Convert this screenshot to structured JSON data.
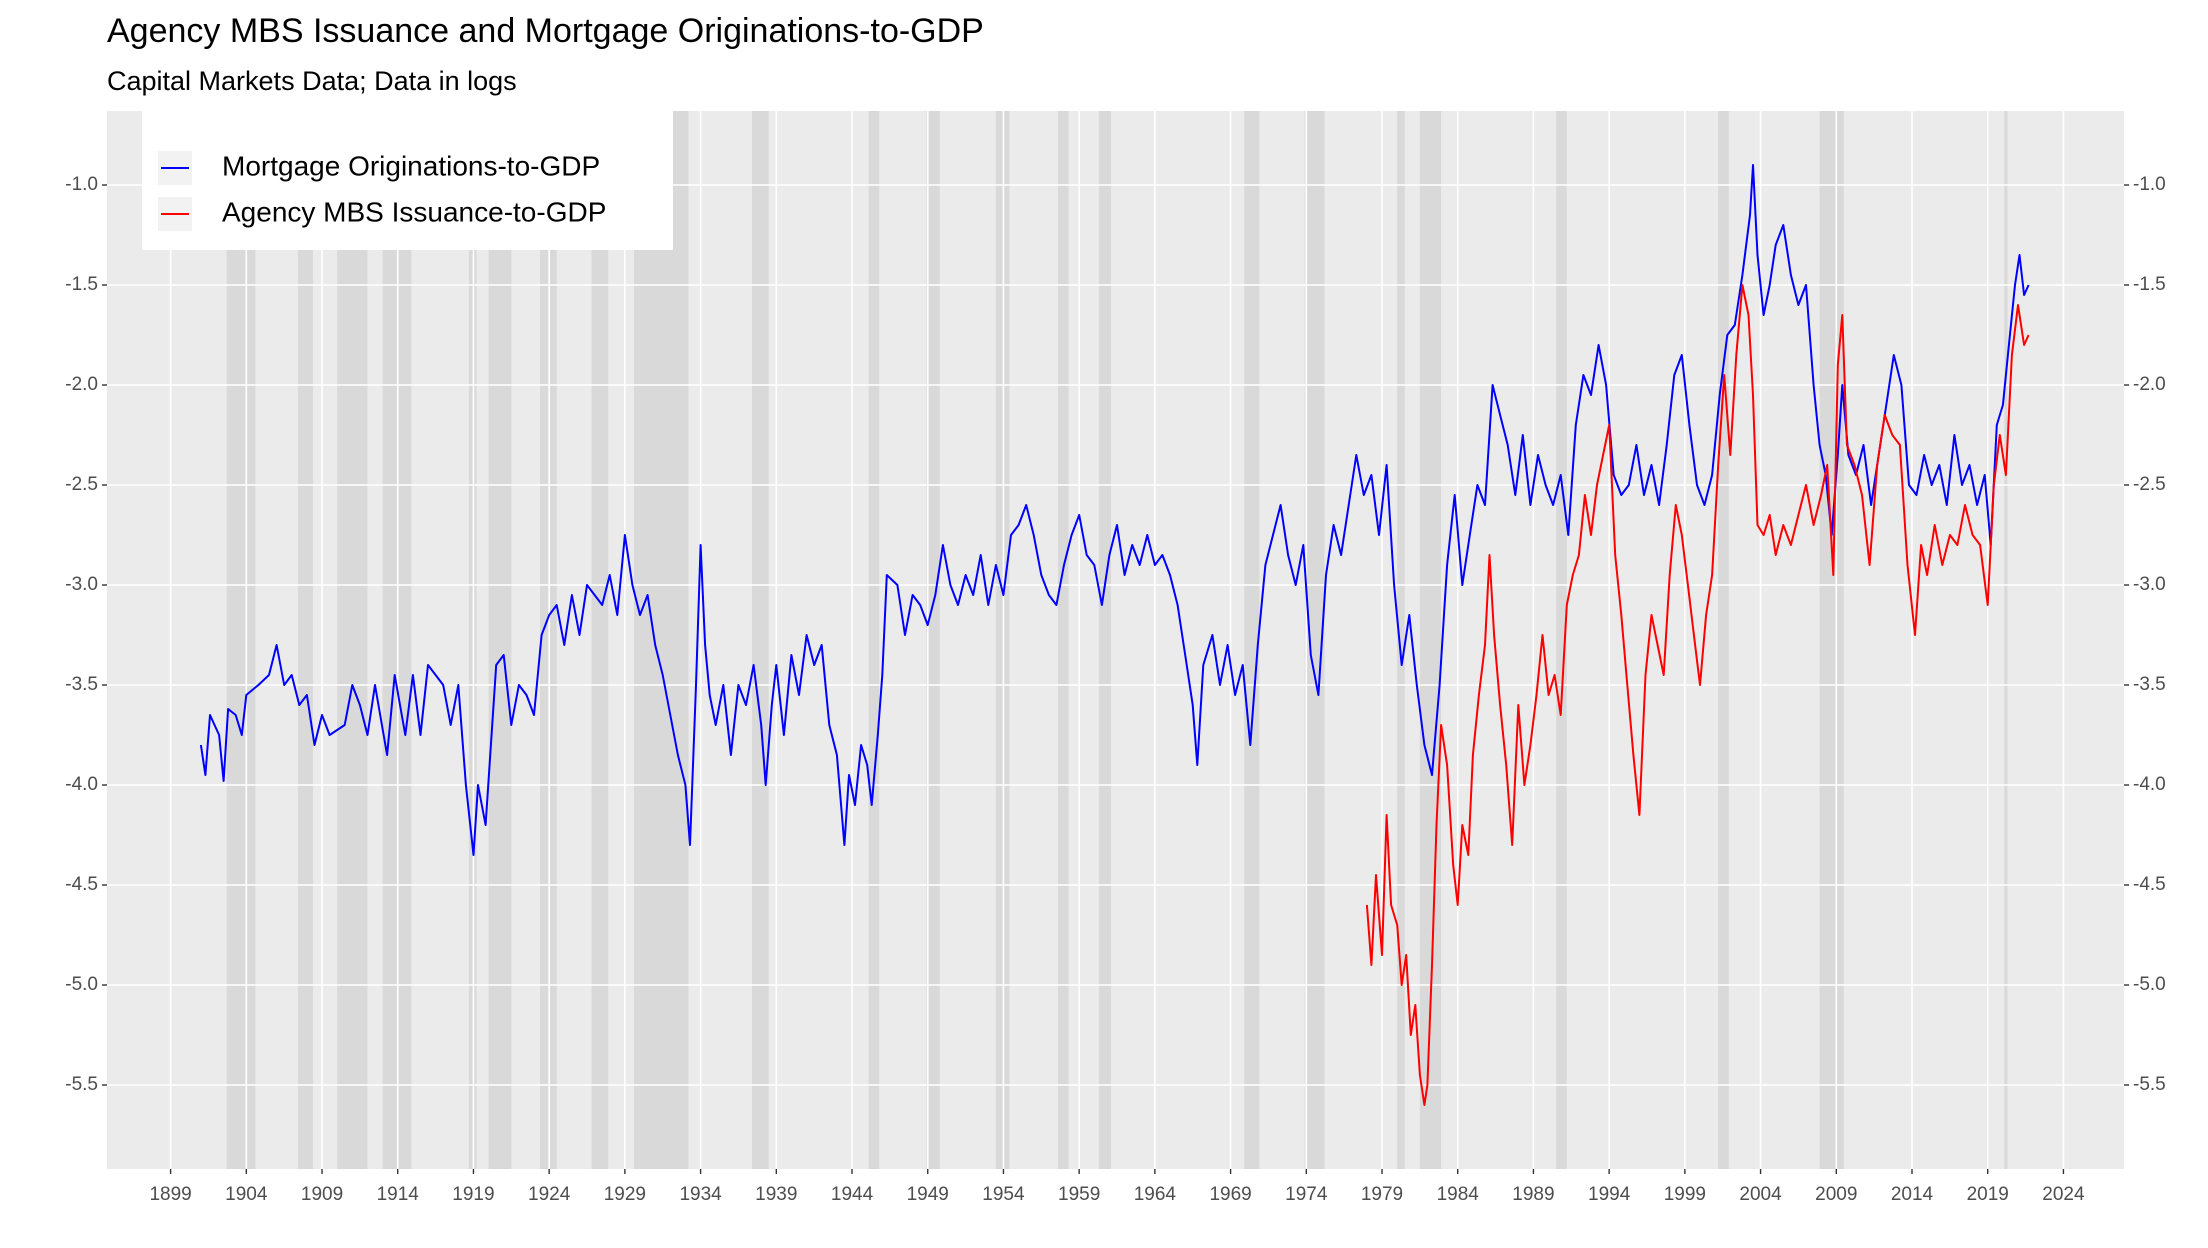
{
  "chart_data": {
    "type": "line",
    "title": "Agency MBS Issuance and Mortgage Originations-to-GDP",
    "subtitle": "Capital Markets Data; Data in logs",
    "xlim": [
      1894.8,
      2028.0
    ],
    "ylim": [
      -5.92,
      -0.63
    ],
    "xticks": [
      1899,
      1904,
      1909,
      1914,
      1919,
      1924,
      1929,
      1934,
      1939,
      1944,
      1949,
      1954,
      1959,
      1964,
      1969,
      1974,
      1979,
      1984,
      1989,
      1994,
      1999,
      2004,
      2009,
      2014,
      2019,
      2024
    ],
    "yticks": [
      {
        "value": -1,
        "label": "-1.0"
      },
      -1.5,
      {
        "value": -2,
        "label": "-2.0"
      },
      -2.5,
      {
        "value": -3,
        "label": "-3.0"
      },
      -3.5,
      {
        "value": -4,
        "label": "-4.0"
      },
      -4.5,
      {
        "value": -5,
        "label": "-5.0"
      },
      -5.5
    ],
    "grid": true,
    "legend_position": "top-left",
    "shaded_periods": [
      [
        1902.7,
        1904.6
      ],
      [
        1907.4,
        1908.4
      ],
      [
        1910.0,
        1912.0
      ],
      [
        1913.0,
        1914.9
      ],
      [
        1918.7,
        1919.2
      ],
      [
        1920.0,
        1921.5
      ],
      [
        1923.4,
        1924.5
      ],
      [
        1926.8,
        1927.9
      ],
      [
        1929.6,
        1933.2
      ],
      [
        1937.4,
        1938.5
      ],
      [
        1945.1,
        1945.8
      ],
      [
        1948.9,
        1949.8
      ],
      [
        1953.5,
        1954.4
      ],
      [
        1957.6,
        1958.3
      ],
      [
        1960.3,
        1961.1
      ],
      [
        1969.9,
        1970.9
      ],
      [
        1973.9,
        1975.2
      ],
      [
        1980.0,
        1980.5
      ],
      [
        1981.5,
        1982.9
      ],
      [
        1990.5,
        1991.2
      ],
      [
        2001.2,
        2001.9
      ],
      [
        2007.9,
        2009.5
      ],
      [
        2020.1,
        2020.3
      ]
    ],
    "series": [
      {
        "name": "Mortgage Originations-to-GDP",
        "color": "#0000ff",
        "x": [
          1901.0,
          1901.3,
          1901.6,
          1902.2,
          1902.5,
          1902.8,
          1903.3,
          1903.7,
          1904.0,
          1904.8,
          1905.5,
          1906.0,
          1906.5,
          1907.0,
          1907.5,
          1908.0,
          1908.5,
          1909.0,
          1909.5,
          1910.5,
          1911.0,
          1911.5,
          1912.0,
          1912.5,
          1913.3,
          1913.8,
          1914.5,
          1915.0,
          1915.5,
          1916.0,
          1917.0,
          1917.5,
          1918.0,
          1918.5,
          1919.0,
          1919.3,
          1919.8,
          1920.5,
          1921.0,
          1921.5,
          1922.0,
          1922.5,
          1923.0,
          1923.5,
          1924.0,
          1924.5,
          1925.0,
          1925.5,
          1926.0,
          1926.5,
          1927.5,
          1928.0,
          1928.5,
          1929.0,
          1929.5,
          1930.0,
          1930.5,
          1931.0,
          1931.5,
          1932.0,
          1932.5,
          1933.0,
          1933.3,
          1933.7,
          1934.0,
          1934.3,
          1934.6,
          1935.0,
          1935.5,
          1936.0,
          1936.5,
          1937.0,
          1937.5,
          1938.0,
          1938.3,
          1938.7,
          1939.0,
          1939.5,
          1940.0,
          1940.5,
          1941.0,
          1941.5,
          1942.0,
          1942.5,
          1943.0,
          1943.5,
          1943.8,
          1944.2,
          1944.6,
          1945.0,
          1945.3,
          1945.7,
          1946.0,
          1946.3,
          1947.0,
          1947.5,
          1948.0,
          1948.5,
          1949.0,
          1949.5,
          1950.0,
          1950.5,
          1951.0,
          1951.5,
          1952.0,
          1952.5,
          1953.0,
          1953.5,
          1954.0,
          1954.5,
          1955.0,
          1955.5,
          1956.0,
          1956.5,
          1957.0,
          1957.5,
          1958.0,
          1958.5,
          1959.0,
          1959.5,
          1960.0,
          1960.5,
          1961.0,
          1961.5,
          1962.0,
          1962.5,
          1963.0,
          1963.5,
          1964.0,
          1964.5,
          1965.0,
          1965.5,
          1966.0,
          1966.5,
          1966.8,
          1967.2,
          1967.8,
          1968.3,
          1968.8,
          1969.3,
          1969.8,
          1970.3,
          1970.8,
          1971.3,
          1971.8,
          1972.3,
          1972.8,
          1973.3,
          1973.8,
          1974.3,
          1974.8,
          1975.3,
          1975.8,
          1976.3,
          1976.8,
          1977.3,
          1977.8,
          1978.3,
          1978.8,
          1979.3,
          1979.8,
          1980.3,
          1980.8,
          1981.3,
          1981.8,
          1982.3,
          1982.8,
          1983.3,
          1983.8,
          1984.3,
          1984.8,
          1985.3,
          1985.8,
          1986.3,
          1986.8,
          1987.3,
          1987.8,
          1988.3,
          1988.8,
          1989.3,
          1989.8,
          1990.3,
          1990.8,
          1991.3,
          1991.8,
          1992.3,
          1992.8,
          1993.3,
          1993.8,
          1994.3,
          1994.8,
          1995.3,
          1995.8,
          1996.3,
          1996.8,
          1997.3,
          1997.8,
          1998.3,
          1998.8,
          1999.3,
          1999.8,
          2000.3,
          2000.8,
          2001.3,
          2001.8,
          2002.3,
          2002.8,
          2003.3,
          2003.5,
          2003.8,
          2004.2,
          2004.6,
          2005.0,
          2005.5,
          2006.0,
          2006.5,
          2007.0,
          2007.5,
          2007.9,
          2008.3,
          2008.7,
          2009.1,
          2009.4,
          2009.8,
          2010.3,
          2010.8,
          2011.3,
          2011.8,
          2012.3,
          2012.8,
          2013.3,
          2013.8,
          2014.3,
          2014.8,
          2015.3,
          2015.8,
          2016.3,
          2016.8,
          2017.3,
          2017.8,
          2018.3,
          2018.8,
          2019.2,
          2019.6,
          2020.0,
          2020.4,
          2020.8,
          2021.1,
          2021.4,
          2021.7
        ],
        "values": [
          -3.8,
          -3.95,
          -3.65,
          -3.75,
          -3.98,
          -3.62,
          -3.65,
          -3.75,
          -3.55,
          -3.5,
          -3.45,
          -3.3,
          -3.5,
          -3.45,
          -3.6,
          -3.55,
          -3.8,
          -3.65,
          -3.75,
          -3.7,
          -3.5,
          -3.6,
          -3.75,
          -3.5,
          -3.85,
          -3.45,
          -3.75,
          -3.45,
          -3.75,
          -3.4,
          -3.5,
          -3.7,
          -3.5,
          -4.0,
          -4.35,
          -4.0,
          -4.2,
          -3.4,
          -3.35,
          -3.7,
          -3.5,
          -3.55,
          -3.65,
          -3.25,
          -3.15,
          -3.1,
          -3.3,
          -3.05,
          -3.25,
          -3.0,
          -3.1,
          -2.95,
          -3.15,
          -2.75,
          -3.0,
          -3.15,
          -3.05,
          -3.3,
          -3.45,
          -3.65,
          -3.85,
          -4.0,
          -4.3,
          -3.5,
          -2.8,
          -3.3,
          -3.55,
          -3.7,
          -3.5,
          -3.85,
          -3.5,
          -3.6,
          -3.4,
          -3.7,
          -4.0,
          -3.6,
          -3.4,
          -3.75,
          -3.35,
          -3.55,
          -3.25,
          -3.4,
          -3.3,
          -3.7,
          -3.85,
          -4.3,
          -3.95,
          -4.1,
          -3.8,
          -3.9,
          -4.1,
          -3.75,
          -3.45,
          -2.95,
          -3.0,
          -3.25,
          -3.05,
          -3.1,
          -3.2,
          -3.05,
          -2.8,
          -3.0,
          -3.1,
          -2.95,
          -3.05,
          -2.85,
          -3.1,
          -2.9,
          -3.05,
          -2.75,
          -2.7,
          -2.6,
          -2.75,
          -2.95,
          -3.05,
          -3.1,
          -2.9,
          -2.75,
          -2.65,
          -2.85,
          -2.9,
          -3.1,
          -2.85,
          -2.7,
          -2.95,
          -2.8,
          -2.9,
          -2.75,
          -2.9,
          -2.85,
          -2.95,
          -3.1,
          -3.35,
          -3.6,
          -3.9,
          -3.4,
          -3.25,
          -3.5,
          -3.3,
          -3.55,
          -3.4,
          -3.8,
          -3.3,
          -2.9,
          -2.75,
          -2.6,
          -2.85,
          -3.0,
          -2.8,
          -3.35,
          -3.55,
          -2.95,
          -2.7,
          -2.85,
          -2.6,
          -2.35,
          -2.55,
          -2.45,
          -2.75,
          -2.4,
          -3.0,
          -3.4,
          -3.15,
          -3.5,
          -3.8,
          -3.95,
          -3.5,
          -2.9,
          -2.55,
          -3.0,
          -2.75,
          -2.5,
          -2.6,
          -2.0,
          -2.15,
          -2.3,
          -2.55,
          -2.25,
          -2.6,
          -2.35,
          -2.5,
          -2.6,
          -2.45,
          -2.75,
          -2.2,
          -1.95,
          -2.05,
          -1.8,
          -2.0,
          -2.45,
          -2.55,
          -2.5,
          -2.3,
          -2.55,
          -2.4,
          -2.6,
          -2.3,
          -1.95,
          -1.85,
          -2.2,
          -2.5,
          -2.6,
          -2.45,
          -2.05,
          -1.75,
          -1.7,
          -1.45,
          -1.15,
          -0.9,
          -1.35,
          -1.65,
          -1.5,
          -1.3,
          -1.2,
          -1.45,
          -1.6,
          -1.5,
          -2.0,
          -2.3,
          -2.45,
          -2.75,
          -2.35,
          -2.0,
          -2.35,
          -2.45,
          -2.3,
          -2.6,
          -2.35,
          -2.1,
          -1.85,
          -2.0,
          -2.5,
          -2.55,
          -2.35,
          -2.5,
          -2.4,
          -2.6,
          -2.25,
          -2.5,
          -2.4,
          -2.6,
          -2.45,
          -2.8,
          -2.2,
          -2.1,
          -1.8,
          -1.5,
          -1.35,
          -1.55,
          -1.5
        ]
      },
      {
        "name": "Agency MBS Issuance-to-GDP",
        "color": "#ff0000",
        "x": [
          1978.0,
          1978.3,
          1978.6,
          1979.0,
          1979.3,
          1979.6,
          1980.0,
          1980.3,
          1980.6,
          1980.9,
          1981.2,
          1981.5,
          1981.8,
          1982.0,
          1982.3,
          1982.6,
          1982.9,
          1983.3,
          1983.7,
          1984.0,
          1984.3,
          1984.7,
          1985.0,
          1985.4,
          1985.8,
          1986.1,
          1986.4,
          1986.8,
          1987.2,
          1987.6,
          1988.0,
          1988.4,
          1988.8,
          1989.2,
          1989.6,
          1990.0,
          1990.4,
          1990.8,
          1991.2,
          1991.6,
          1992.0,
          1992.4,
          1992.8,
          1993.2,
          1993.6,
          1994.0,
          1994.4,
          1994.8,
          1995.2,
          1995.6,
          1996.0,
          1996.4,
          1996.8,
          1997.2,
          1997.6,
          1998.0,
          1998.4,
          1998.8,
          1999.2,
          1999.6,
          2000.0,
          2000.4,
          2000.8,
          2001.2,
          2001.6,
          2002.0,
          2002.4,
          2002.8,
          2003.2,
          2003.5,
          2003.8,
          2004.2,
          2004.6,
          2005.0,
          2005.5,
          2006.0,
          2006.5,
          2007.0,
          2007.5,
          2008.0,
          2008.4,
          2008.8,
          2009.1,
          2009.4,
          2009.7,
          2010.2,
          2010.7,
          2011.2,
          2011.7,
          2012.2,
          2012.7,
          2013.2,
          2013.7,
          2014.2,
          2014.6,
          2015.0,
          2015.5,
          2016.0,
          2016.5,
          2017.0,
          2017.5,
          2018.0,
          2018.5,
          2019.0,
          2019.4,
          2019.8,
          2020.2,
          2020.6,
          2021.0,
          2021.4,
          2021.7
        ],
        "values": [
          -4.6,
          -4.9,
          -4.45,
          -4.85,
          -4.15,
          -4.6,
          -4.7,
          -5.0,
          -4.85,
          -5.25,
          -5.1,
          -5.45,
          -5.6,
          -5.5,
          -4.9,
          -4.2,
          -3.7,
          -3.9,
          -4.4,
          -4.6,
          -4.2,
          -4.35,
          -3.85,
          -3.55,
          -3.3,
          -2.85,
          -3.25,
          -3.6,
          -3.9,
          -4.3,
          -3.6,
          -4.0,
          -3.8,
          -3.55,
          -3.25,
          -3.55,
          -3.45,
          -3.65,
          -3.1,
          -2.95,
          -2.85,
          -2.55,
          -2.75,
          -2.5,
          -2.35,
          -2.2,
          -2.85,
          -3.15,
          -3.5,
          -3.85,
          -4.15,
          -3.45,
          -3.15,
          -3.3,
          -3.45,
          -2.95,
          -2.6,
          -2.75,
          -3.0,
          -3.25,
          -3.5,
          -3.15,
          -2.95,
          -2.4,
          -1.95,
          -2.35,
          -1.85,
          -1.5,
          -1.65,
          -2.05,
          -2.7,
          -2.75,
          -2.65,
          -2.85,
          -2.7,
          -2.8,
          -2.65,
          -2.5,
          -2.7,
          -2.55,
          -2.4,
          -2.95,
          -1.9,
          -1.65,
          -2.3,
          -2.4,
          -2.55,
          -2.9,
          -2.4,
          -2.15,
          -2.25,
          -2.3,
          -2.9,
          -3.25,
          -2.8,
          -2.95,
          -2.7,
          -2.9,
          -2.75,
          -2.8,
          -2.6,
          -2.75,
          -2.8,
          -3.1,
          -2.5,
          -2.25,
          -2.45,
          -1.85,
          -1.6,
          -1.8,
          -1.75
        ]
      }
    ]
  }
}
